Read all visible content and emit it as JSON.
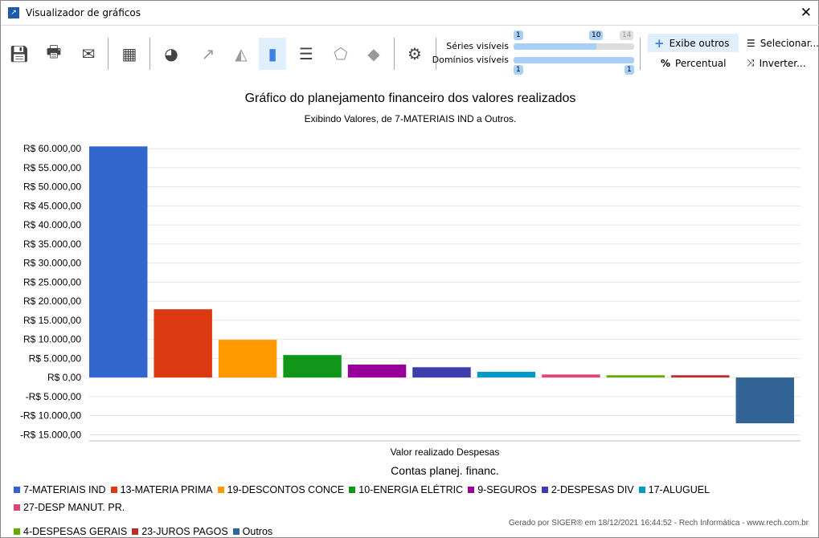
{
  "window": {
    "title": "Visualizador de gráficos",
    "close": "✕"
  },
  "toolbar": {
    "buttons": [
      {
        "name": "save-icon",
        "glyph": "💾︎"
      },
      {
        "name": "print-icon",
        "glyph": "🖶"
      },
      {
        "name": "email-icon",
        "glyph": "✉"
      },
      {
        "name": "table-icon",
        "glyph": "▦"
      },
      {
        "name": "pie-chart-icon",
        "glyph": "◕"
      },
      {
        "name": "line-chart-icon",
        "glyph": "↗"
      },
      {
        "name": "area-chart-icon",
        "glyph": "◭"
      },
      {
        "name": "bar-chart-icon",
        "glyph": "▮"
      },
      {
        "name": "horizontal-bar-chart-icon",
        "glyph": "☰"
      },
      {
        "name": "radar-chart-icon",
        "glyph": "⬠"
      },
      {
        "name": "map-icon",
        "glyph": "◆"
      },
      {
        "name": "settings-icon",
        "glyph": "⚙"
      }
    ],
    "series_label": "Séries visíveis",
    "series_min": "1",
    "series_value": "10",
    "series_max": "14",
    "domain_label": "Domínios visíveis",
    "domain_min": "1",
    "domain_max": "1",
    "show_others": "Exibe outros",
    "percent": "Percentual",
    "select": "Selecionar...",
    "invert": "Inverter..."
  },
  "chart_data": {
    "type": "bar",
    "title": "Gráfico do planejamento financeiro dos valores realizados",
    "subtitle": "Exibindo Valores, de 7-MATERIAIS IND a Outros.",
    "categories": [
      "Valor realizado Despesas"
    ],
    "xlabel": "Contas planej. financ.",
    "ylabel": "",
    "ylim": [
      -16600,
      61300
    ],
    "yticks": [
      -15000,
      -10000,
      -5000,
      0,
      5000,
      10000,
      15000,
      20000,
      25000,
      30000,
      35000,
      40000,
      45000,
      50000,
      55000,
      60000
    ],
    "grid": true,
    "legend": "bottom",
    "series": [
      {
        "name": "7-MATERIAIS IND",
        "values": [
          60600
        ],
        "color": "#3366cc"
      },
      {
        "name": "13-MATERIA PRIMA",
        "values": [
          17900
        ],
        "color": "#dc3912"
      },
      {
        "name": "19-DESCONTOS CONCE",
        "values": [
          9900
        ],
        "color": "#ff9900"
      },
      {
        "name": "10-ENERGIA ELÉTRIC",
        "values": [
          5900
        ],
        "color": "#109618"
      },
      {
        "name": "9-SEGUROS",
        "values": [
          3400
        ],
        "color": "#990099"
      },
      {
        "name": "2-DESPESAS DIV",
        "values": [
          2700
        ],
        "color": "#3b3eac"
      },
      {
        "name": "17-ALUGUEL",
        "values": [
          1500
        ],
        "color": "#0099c6"
      },
      {
        "name": "27-DESP MANUT. PR.",
        "values": [
          800
        ],
        "color": "#dd4477"
      },
      {
        "name": "4-DESPESAS GERAIS",
        "values": [
          600
        ],
        "color": "#66aa00"
      },
      {
        "name": "23-JUROS PAGOS",
        "values": [
          600
        ],
        "color": "#b82e2e"
      },
      {
        "name": "Outros",
        "values": [
          -12000
        ],
        "color": "#316395"
      }
    ]
  },
  "footer": "Gerado por SIGER® em 18/12/2021 16:44:52 - Rech Informática - www.rech.com.br"
}
